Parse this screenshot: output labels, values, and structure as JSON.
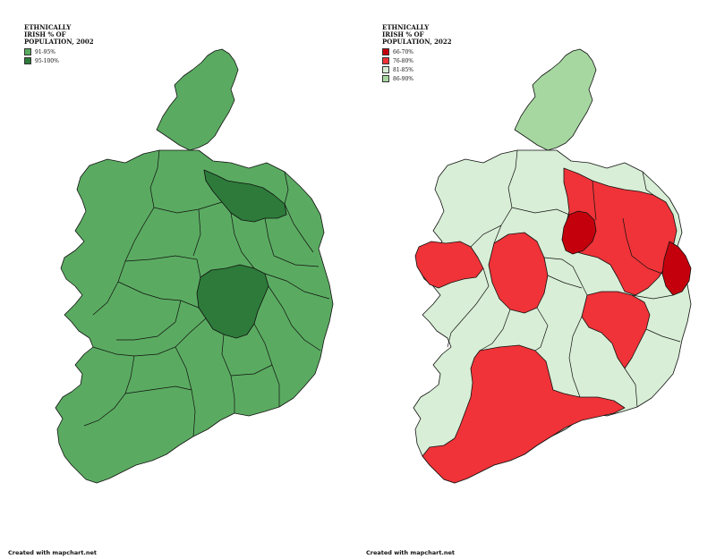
{
  "maps": [
    {
      "title_lines": [
        "ETHNICALLY",
        "IRISH % OF",
        "POPULATION, 2002"
      ],
      "legend": [
        {
          "label": "91-95%",
          "color": "#5aab61"
        },
        {
          "label": "95-100%",
          "color": "#2d7a3a"
        }
      ],
      "credit": "Created with mapchart.net"
    },
    {
      "title_lines": [
        "ETHNICALLY",
        "IRISH % OF",
        "POPULATION, 2022"
      ],
      "legend": [
        {
          "label": "66-70%",
          "color": "#c4000c"
        },
        {
          "label": "76-80%",
          "color": "#ef3338"
        },
        {
          "label": "81-85%",
          "color": "#d8eed6"
        },
        {
          "label": "86-90%",
          "color": "#a6d7a0"
        }
      ],
      "credit": "Created with mapchart.net"
    }
  ],
  "colors": {
    "green_91_95": "#5aab61",
    "green_95_100": "#2d7a3a",
    "red_66_70": "#c4000c",
    "red_76_80": "#ef3338",
    "pale_81_85": "#d8eed6",
    "light_86_90": "#a6d7a0"
  }
}
